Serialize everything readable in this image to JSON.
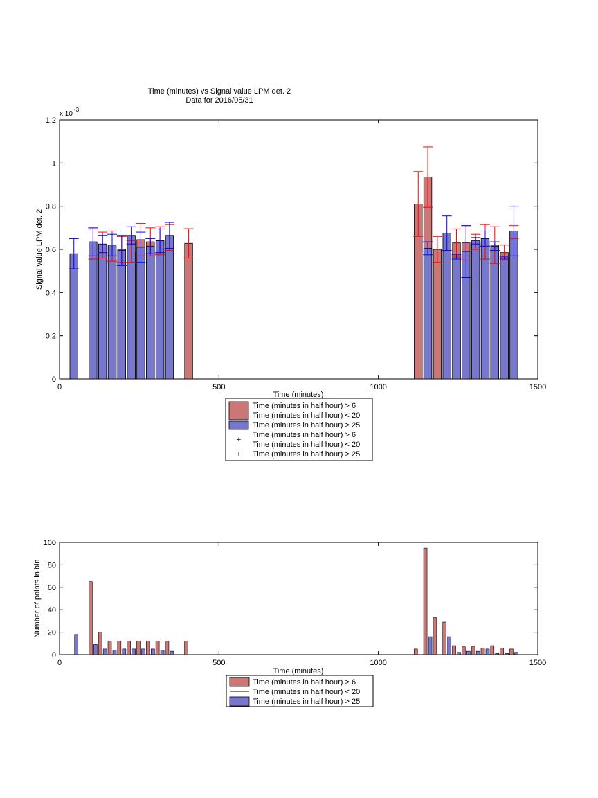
{
  "figure": {
    "title_line1": "Time (minutes) vs Signal value LPM det. 2",
    "title_line2": "Data for 2016/05/31"
  },
  "colors": {
    "red_series": "#cc7777",
    "blue_series": "#7777cc",
    "red_error": "#ff0000",
    "blue_error": "#0000ff"
  },
  "chart_data": [
    {
      "type": "bar",
      "title": "Time (minutes) vs Signal value LPM det. 2",
      "subtitle": "Data for 2016/05/31",
      "xlabel": "Time (minutes)",
      "ylabel": "Signal value LPM det. 2",
      "exponent_label": "x 10",
      "exponent_power": "-3",
      "xlim": [
        0,
        1500
      ],
      "ylim": [
        0,
        1.2
      ],
      "y_scale_factor": 0.001,
      "xticks": [
        0,
        500,
        1000,
        1500
      ],
      "yticks": [
        0,
        0.2,
        0.4,
        0.6,
        0.8,
        1,
        1.2
      ],
      "grid": false,
      "legend_position": "below",
      "legend": [
        {
          "label": "Time (minutes in half hour) > 6\nTime (minutes in half hour) < 20",
          "kind": "bar",
          "series": 0
        },
        {
          "label": "Time (minutes in half hour) > 25",
          "kind": "bar",
          "series": 1
        },
        {
          "label": "Time (minutes in half hour) > 6\nTime (minutes in half hour) < 20",
          "kind": "marker",
          "series": 0
        },
        {
          "label": "Time (minutes in half hour) > 25",
          "kind": "marker",
          "series": 1
        }
      ],
      "series": [
        {
          "name": "Time (minutes in half hour) > 6 Time (minutes in half hour) < 20",
          "x": [
            105,
            135,
            165,
            195,
            225,
            255,
            285,
            315,
            345,
            405,
            1125,
            1155,
            1185,
            1245,
            1275,
            1305,
            1335,
            1365,
            1395,
            1425
          ],
          "values": [
            0.625,
            0.62,
            0.615,
            0.6,
            0.59,
            0.645,
            0.635,
            0.64,
            0.655,
            0.628,
            0.81,
            0.935,
            0.6,
            0.63,
            0.63,
            0.635,
            0.635,
            0.62,
            0.585,
            0.68
          ],
          "err": [
            0.07,
            0.06,
            0.07,
            0.06,
            0.05,
            0.075,
            0.065,
            0.065,
            0.06,
            0.068,
            0.15,
            0.14,
            0.06,
            0.065,
            0.08,
            0.035,
            0.08,
            0.085,
            0.035,
            0.03
          ]
        },
        {
          "name": "Time (minutes in half hour) > 25",
          "x": [
            45,
            105,
            135,
            165,
            195,
            225,
            255,
            285,
            315,
            345,
            1155,
            1215,
            1245,
            1275,
            1305,
            1335,
            1365,
            1395,
            1425
          ],
          "values": [
            0.58,
            0.635,
            0.625,
            0.62,
            0.595,
            0.665,
            0.61,
            0.615,
            0.64,
            0.665,
            0.605,
            0.675,
            0.565,
            0.59,
            0.64,
            0.65,
            0.615,
            0.56,
            0.685
          ],
          "err": [
            0.07,
            0.065,
            0.04,
            0.05,
            0.07,
            0.04,
            0.07,
            0.035,
            0.055,
            0.06,
            0.03,
            0.08,
            0.01,
            0.12,
            0.015,
            0.035,
            0.02,
            0.005,
            0.115
          ]
        }
      ]
    },
    {
      "type": "bar",
      "title": "",
      "xlabel": "Time (minutes)",
      "ylabel": "Number of points in bin",
      "xlim": [
        0,
        1500
      ],
      "ylim": [
        0,
        100
      ],
      "xticks": [
        0,
        500,
        1000,
        1500
      ],
      "yticks": [
        0,
        20,
        40,
        60,
        80,
        100
      ],
      "grid": false,
      "legend_position": "below",
      "legend": [
        {
          "label": "Time (minutes in half hour) > 6",
          "kind": "bar",
          "series": 0
        },
        {
          "label": "Time (minutes in half hour) < 20",
          "kind": "line",
          "series": -1
        },
        {
          "label": "Time (minutes in half hour) > 25",
          "kind": "bar",
          "series": 1
        }
      ],
      "series": [
        {
          "name": "Time (minutes in half hour) > 6 Time (minutes in half hour) < 20",
          "x": [
            105,
            135,
            165,
            195,
            225,
            255,
            285,
            315,
            345,
            405,
            1125,
            1155,
            1185,
            1215,
            1245,
            1275,
            1305,
            1335,
            1365,
            1395,
            1425
          ],
          "values": [
            65,
            20,
            12,
            12,
            12,
            12,
            12,
            12,
            12,
            12,
            5,
            95,
            33,
            29,
            8,
            7,
            7,
            6,
            8,
            6,
            5
          ]
        },
        {
          "name": "Time (minutes in half hour) > 25",
          "x": [
            45,
            105,
            135,
            165,
            195,
            225,
            255,
            285,
            315,
            345,
            1155,
            1215,
            1245,
            1275,
            1305,
            1335,
            1365,
            1395,
            1425
          ],
          "values": [
            18,
            9,
            5,
            4,
            5,
            5,
            5,
            5,
            4,
            3,
            16,
            16,
            2,
            3,
            3,
            5,
            1,
            1,
            2
          ]
        }
      ]
    }
  ]
}
